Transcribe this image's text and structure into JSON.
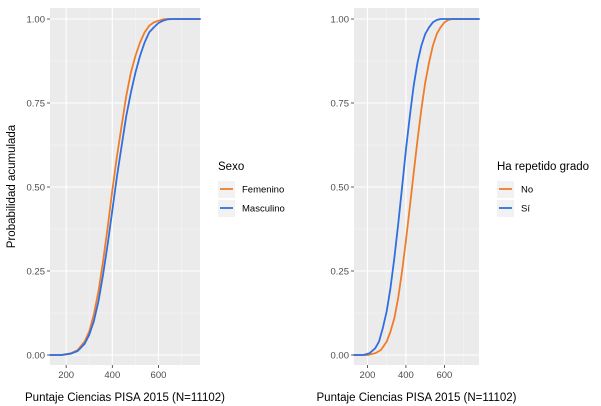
{
  "chart_data": [
    {
      "type": "line",
      "title": "",
      "xlabel": "Puntaje Ciencias PISA 2015 (N=11102)",
      "ylabel": "Probabilidad acumulada",
      "xlim": [
        130,
        780
      ],
      "ylim": [
        0,
        1
      ],
      "xticks": [
        200,
        400,
        600
      ],
      "yticks": [
        "0.00",
        "0.25",
        "0.50",
        "0.75",
        "1.00"
      ],
      "grid": true,
      "legend": {
        "title": "Sexo",
        "placement": "right",
        "entries": [
          {
            "label": "Femenino",
            "color": "#F8766D"
          },
          {
            "label": "Masculino",
            "color": "#2F6FE0"
          }
        ]
      },
      "series": [
        {
          "name": "Femenino",
          "color": "#F07C2A",
          "x": [
            130,
            180,
            220,
            250,
            280,
            300,
            320,
            340,
            360,
            380,
            400,
            420,
            440,
            460,
            480,
            500,
            520,
            540,
            560,
            580,
            600,
            620,
            640,
            660,
            700,
            780
          ],
          "y": [
            0.0,
            0.0,
            0.005,
            0.015,
            0.04,
            0.07,
            0.12,
            0.19,
            0.28,
            0.38,
            0.49,
            0.59,
            0.68,
            0.77,
            0.84,
            0.89,
            0.93,
            0.96,
            0.98,
            0.99,
            0.995,
            0.999,
            1.0,
            1.0,
            1.0,
            1.0
          ]
        },
        {
          "name": "Masculino",
          "color": "#2F6FE0",
          "x": [
            130,
            180,
            220,
            250,
            280,
            300,
            320,
            340,
            360,
            380,
            400,
            420,
            440,
            460,
            480,
            500,
            520,
            540,
            560,
            580,
            600,
            620,
            640,
            660,
            700,
            780
          ],
          "y": [
            0.0,
            0.0,
            0.004,
            0.012,
            0.033,
            0.06,
            0.1,
            0.16,
            0.24,
            0.33,
            0.43,
            0.53,
            0.62,
            0.71,
            0.78,
            0.84,
            0.89,
            0.93,
            0.96,
            0.975,
            0.988,
            0.995,
            0.999,
            1.0,
            1.0,
            1.0
          ]
        }
      ]
    },
    {
      "type": "line",
      "title": "",
      "xlabel": "Puntaje Ciencias PISA 2015 (N=11102)",
      "ylabel": "",
      "xlim": [
        130,
        780
      ],
      "ylim": [
        0,
        1
      ],
      "xticks": [
        200,
        400,
        600
      ],
      "yticks": [
        "0.00",
        "0.25",
        "0.50",
        "0.75",
        "1.00"
      ],
      "grid": true,
      "legend": {
        "title": "Ha repetido grado",
        "placement": "right",
        "entries": [
          {
            "label": "No",
            "color": "#F07C2A"
          },
          {
            "label": "Sí",
            "color": "#2F6FE0"
          }
        ]
      },
      "series": [
        {
          "name": "No",
          "color": "#F07C2A",
          "x": [
            130,
            200,
            240,
            270,
            300,
            320,
            340,
            360,
            380,
            400,
            420,
            440,
            460,
            480,
            500,
            520,
            540,
            560,
            580,
            600,
            620,
            640,
            660,
            700,
            780
          ],
          "y": [
            0.0,
            0.0,
            0.005,
            0.015,
            0.04,
            0.07,
            0.11,
            0.17,
            0.25,
            0.34,
            0.44,
            0.54,
            0.64,
            0.73,
            0.81,
            0.87,
            0.92,
            0.955,
            0.975,
            0.99,
            0.997,
            1.0,
            1.0,
            1.0,
            1.0
          ]
        },
        {
          "name": "Sí",
          "color": "#2F6FE0",
          "x": [
            130,
            180,
            210,
            240,
            260,
            280,
            300,
            320,
            340,
            360,
            380,
            400,
            420,
            440,
            460,
            480,
            500,
            520,
            540,
            560,
            580,
            600,
            620,
            700,
            780
          ],
          "y": [
            0.0,
            0.0,
            0.005,
            0.02,
            0.04,
            0.08,
            0.13,
            0.2,
            0.29,
            0.39,
            0.5,
            0.61,
            0.71,
            0.8,
            0.87,
            0.92,
            0.955,
            0.975,
            0.99,
            0.997,
            1.0,
            1.0,
            1.0,
            1.0,
            1.0
          ]
        }
      ]
    }
  ]
}
